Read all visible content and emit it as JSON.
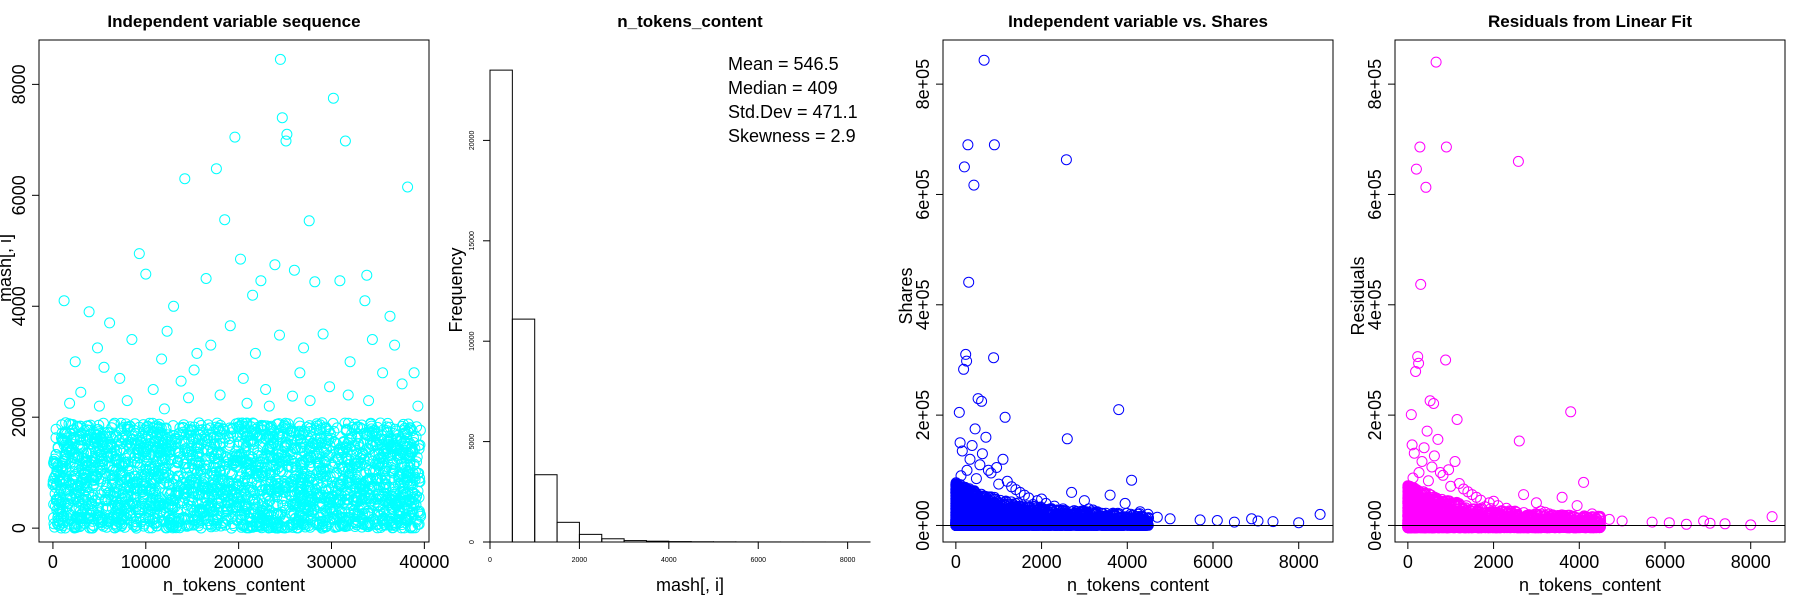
{
  "chart_data": [
    {
      "type": "scatter",
      "title": "Independent variable sequence",
      "xlabel": "n_tokens_content",
      "ylabel": "mash[, i]",
      "xlim": [
        -1500,
        40500
      ],
      "ylim": [
        -250,
        8800
      ],
      "xticks": [
        "0",
        "10000",
        "20000",
        "30000",
        "40000"
      ],
      "yticks": [
        "0",
        "2000",
        "4000",
        "6000",
        "8000"
      ],
      "marker_color": "#00FFFF",
      "series": [
        {
          "x": [
            24500,
            30200,
            24700,
            25200,
            25100,
            19600,
            31500,
            17600,
            38200,
            14200,
            27600,
            18500,
            9300,
            23900,
            26000,
            20200,
            33800,
            16500,
            22400,
            10000,
            28200,
            30900,
            33600,
            21500,
            36300,
            1200,
            3900,
            13000,
            19100,
            6100,
            29100,
            12300,
            24400,
            8500,
            34400,
            36800,
            17000,
            4800,
            27000,
            15500,
            21800,
            11700,
            32000,
            2400,
            38900,
            5500,
            26600,
            15200,
            35500,
            20500,
            7200,
            13800,
            37600,
            29800,
            22900,
            10800,
            3000,
            31800,
            18000,
            25800,
            8000,
            14600,
            27700,
            1800,
            34000,
            20900,
            5000,
            23300,
            12000,
            39300
          ],
          "y": [
            8450,
            7750,
            7400,
            7100,
            6980,
            7050,
            6980,
            6480,
            6150,
            6300,
            5540,
            5560,
            4950,
            4750,
            4650,
            4850,
            4560,
            4500,
            4460,
            4580,
            4440,
            4460,
            4100,
            4200,
            3820,
            4100,
            3900,
            4000,
            3650,
            3700,
            3500,
            3550,
            3480,
            3400,
            3400,
            3300,
            3300,
            3250,
            3250,
            3150,
            3150,
            3050,
            3000,
            3000,
            2800,
            2900,
            2800,
            2850,
            2800,
            2700,
            2700,
            2650,
            2600,
            2550,
            2500,
            2500,
            2450,
            2400,
            2400,
            2380,
            2300,
            2350,
            2300,
            2250,
            2300,
            2250,
            2200,
            2200,
            2150,
            2200
          ]
        }
      ],
      "dense_band": {
        "x": [
          0,
          39600
        ],
        "y": [
          0,
          1900
        ],
        "points": 39644
      }
    },
    {
      "type": "bar",
      "title": "n_tokens_content",
      "xlabel": "mash[, i]",
      "ylabel": "Frequency",
      "xlim": [
        0,
        8500
      ],
      "ylim": [
        0,
        25000
      ],
      "xticks": [
        "0",
        "2000",
        "4000",
        "6000",
        "8000"
      ],
      "yticks": [
        "0",
        "5000",
        "10000",
        "15000",
        "20000"
      ],
      "bin_edges": [
        0,
        500,
        1000,
        1500,
        2000,
        2500,
        3000,
        3500,
        4000,
        4500,
        5000,
        5500,
        6000,
        6500,
        7000,
        7500,
        8000,
        8500
      ],
      "values": [
        23500,
        11100,
        3350,
        980,
        380,
        160,
        70,
        40,
        20,
        12,
        8,
        5,
        3,
        2,
        2,
        1,
        1
      ],
      "annotations": [
        "Mean = 546.5",
        "Median = 409",
        "Std.Dev = 471.1",
        "Skewness = 2.9"
      ]
    },
    {
      "type": "scatter",
      "title": "Independent variable vs. Shares",
      "xlabel": "n_tokens_content",
      "ylabel": "Shares",
      "xlim": [
        -300,
        8800
      ],
      "ylim": [
        -30000,
        880000
      ],
      "xticks": [
        "0",
        "2000",
        "4000",
        "6000",
        "8000"
      ],
      "yticks": [
        "0e+00",
        "2e+05",
        "4e+05",
        "6e+05",
        "8e+05"
      ],
      "marker_color": "#0000FF",
      "series": [
        {
          "x": [
            660,
            280,
            900,
            2580,
            420,
            300,
            200,
            230,
            250,
            880,
            180,
            520,
            600,
            3800,
            80,
            1150,
            2600,
            1100,
            4100,
            3600,
            3950,
            4300,
            4700,
            5000,
            5700,
            6100,
            6500,
            6900,
            7050,
            7400,
            8000,
            8500,
            450,
            700,
            100,
            150,
            330,
            380,
            560,
            760,
            820,
            950,
            1200,
            1300,
            1500,
            1700,
            1900,
            2100,
            2300,
            2500,
            2700,
            3000,
            3200,
            3400,
            120,
            260,
            480,
            620,
            1000,
            1400,
            1600,
            1800,
            2000,
            2200,
            2400,
            2800,
            3100,
            3300,
            3500,
            3700
          ],
          "y": [
            843300,
            690000,
            690000,
            663000,
            617000,
            441000,
            650000,
            310000,
            298000,
            304000,
            283000,
            230000,
            225000,
            210000,
            205000,
            196000,
            157000,
            120000,
            82000,
            55000,
            40000,
            25000,
            15000,
            12000,
            10000,
            9000,
            6000,
            12000,
            8000,
            7000,
            5000,
            20000,
            175000,
            160000,
            150000,
            135000,
            120000,
            145000,
            110000,
            100000,
            95000,
            105000,
            80000,
            70000,
            60000,
            50000,
            45000,
            40000,
            35000,
            30000,
            60000,
            45000,
            28000,
            22000,
            90000,
            100000,
            85000,
            130000,
            75000,
            65000,
            55000,
            38000,
            48000,
            30000,
            26000,
            20000,
            30000,
            25000,
            22000,
            18000
          ]
        }
      ],
      "dense_band": {
        "x": [
          0,
          4500
        ],
        "y": [
          0,
          60000
        ],
        "points": 39644
      },
      "reference_line_y": 0
    },
    {
      "type": "scatter",
      "title": "Residuals from Linear Fit",
      "xlabel": "n_tokens_content",
      "ylabel": "Residuals",
      "xlim": [
        -300,
        8800
      ],
      "ylim": [
        -30000,
        880000
      ],
      "xticks": [
        "0",
        "2000",
        "4000",
        "6000",
        "8000"
      ],
      "yticks": [
        "0e+00",
        "2e+05",
        "4e+05",
        "6e+05",
        "8e+05"
      ],
      "marker_color": "#FF00FF",
      "series": [
        {
          "x": [
            660,
            280,
            900,
            2580,
            420,
            300,
            200,
            230,
            250,
            880,
            180,
            520,
            600,
            3800,
            80,
            1150,
            2600,
            1100,
            4100,
            3600,
            3950,
            4300,
            4700,
            5000,
            5700,
            6100,
            6500,
            6900,
            7050,
            7400,
            8000,
            8500,
            450,
            700,
            100,
            150,
            330,
            380,
            560,
            760,
            820,
            950,
            1200,
            1300,
            1500,
            1700,
            1900,
            2100,
            2300,
            2500,
            2700,
            3000,
            3200,
            3400,
            120,
            260,
            480,
            620,
            1000,
            1400,
            1600,
            1800,
            2000,
            2200,
            2400,
            2800,
            3100,
            3300,
            3500,
            3700
          ],
          "y": [
            840000,
            686000,
            686000,
            660000,
            613000,
            437000,
            646000,
            306000,
            294000,
            300000,
            279000,
            226000,
            221000,
            206000,
            201000,
            192000,
            153000,
            116000,
            78000,
            51000,
            36000,
            21000,
            11000,
            8000,
            6000,
            5000,
            2000,
            8000,
            4000,
            3000,
            1000,
            16000,
            171000,
            156000,
            146000,
            131000,
            116000,
            141000,
            106000,
            96000,
            91000,
            101000,
            76000,
            66000,
            56000,
            46000,
            41000,
            36000,
            31000,
            26000,
            56000,
            41000,
            24000,
            18000,
            86000,
            96000,
            81000,
            126000,
            71000,
            61000,
            51000,
            34000,
            44000,
            26000,
            22000,
            16000,
            26000,
            21000,
            18000,
            14000
          ]
        }
      ],
      "dense_band": {
        "x": [
          0,
          4500
        ],
        "y": [
          -4000,
          56000
        ],
        "points": 39644
      },
      "reference_line_y": 0
    }
  ]
}
